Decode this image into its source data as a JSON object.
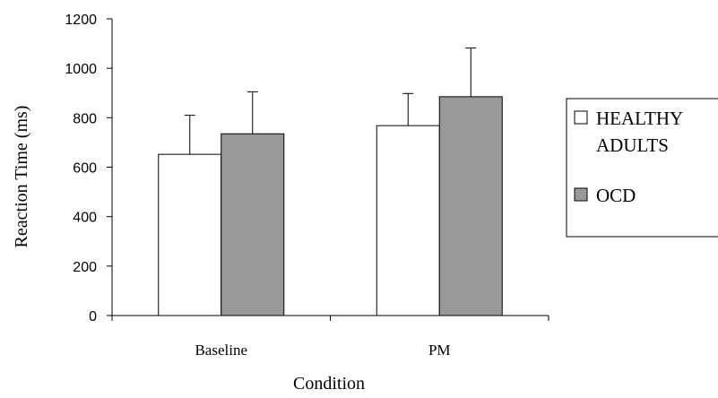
{
  "chart_data": {
    "type": "bar",
    "title": "",
    "xlabel": "Condition",
    "ylabel": "Reaction Time (ms)",
    "ylim": [
      0,
      1200
    ],
    "yticks": [
      "0",
      "200",
      "400",
      "600",
      "800",
      "1000",
      "1200"
    ],
    "categories": [
      "Baseline",
      "PM"
    ],
    "series": [
      {
        "name": "HEALTHY ADULTS",
        "legend_lines": [
          "HEALTHY",
          "ADULTS"
        ],
        "color": "#ffffff",
        "values": [
          652,
          768
        ],
        "error": [
          158,
          130
        ]
      },
      {
        "name": "OCD",
        "legend_lines": [
          "OCD"
        ],
        "color": "#999999",
        "values": [
          735,
          885
        ],
        "error": [
          170,
          197
        ]
      }
    ],
    "grid": false,
    "legend": "right"
  }
}
